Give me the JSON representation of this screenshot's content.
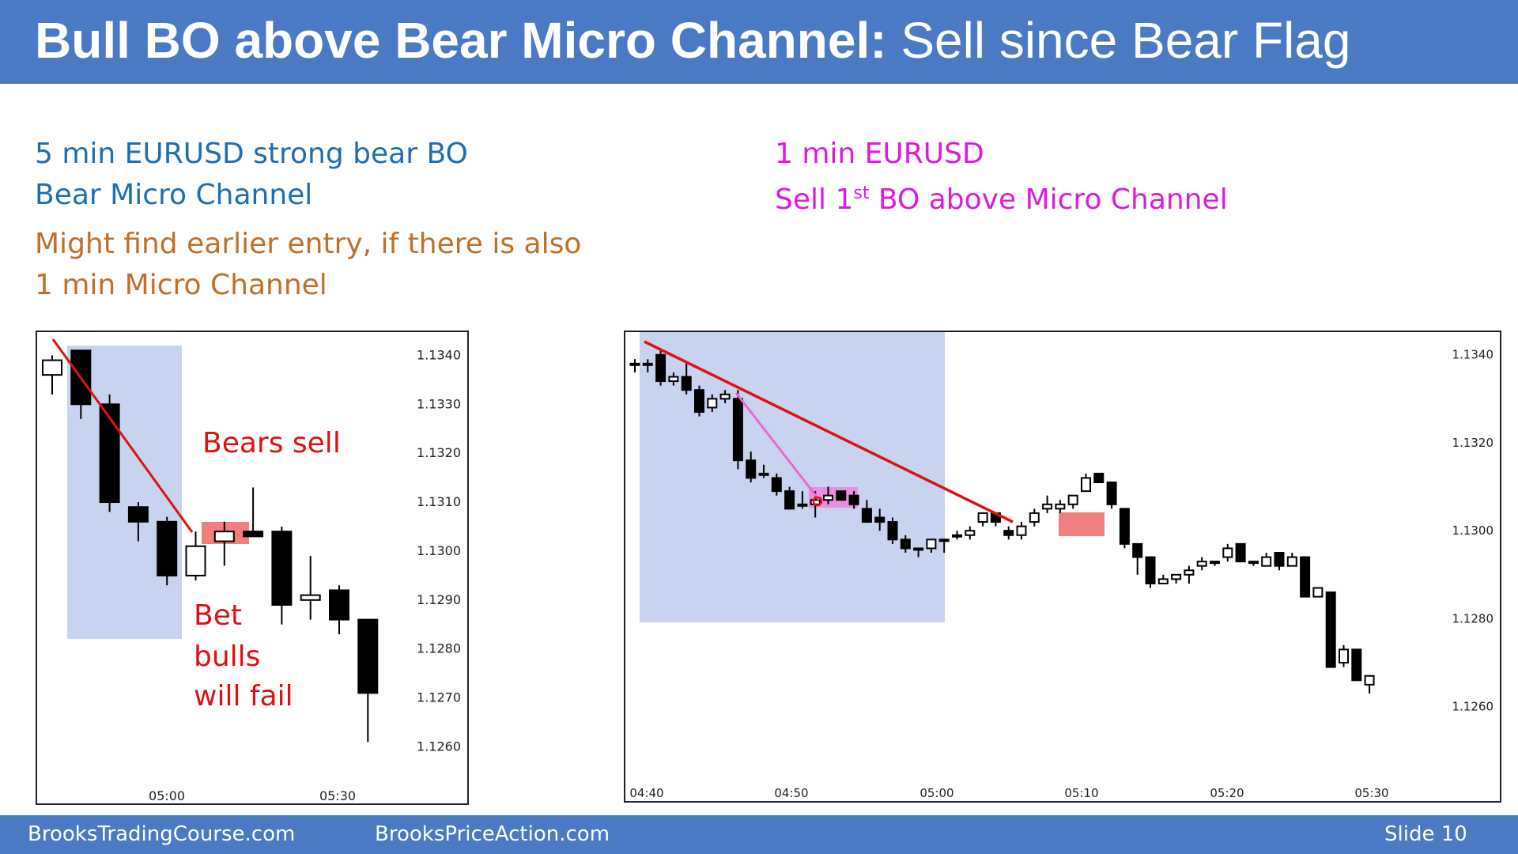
{
  "title": {
    "bold": "Bull BO above Bear Micro Channel:",
    "rest": " Sell since Bear Flag"
  },
  "left_text": {
    "line1": "5 min EURUSD strong bear BO",
    "line2": "Bear Micro Channel",
    "line3": "Might find earlier entry, if there is also",
    "line4": "1 min Micro Channel"
  },
  "right_text": {
    "line1": "1 min EURUSD",
    "line2_pre": "Sell 1",
    "line2_sup": "st",
    "line2_post": " BO above Micro Channel"
  },
  "annotations": {
    "bears_sell": "Bears sell",
    "bet1": "Bet",
    "bet2": "bulls",
    "bet3": "will fail"
  },
  "footer": {
    "site1": "BrooksTradingCourse.com",
    "site2": "BrooksPriceAction.com",
    "slide": "Slide  10"
  },
  "chart_data": [
    {
      "type": "candlestick",
      "y_ticks": [
        "1.1340",
        "1.1330",
        "1.1320",
        "1.1310",
        "1.1300",
        "1.1290",
        "1.1280",
        "1.1270",
        "1.1260"
      ],
      "x_ticks": [
        "05:00",
        "05:30"
      ],
      "ylim": [
        1.1252,
        1.1342
      ],
      "candles": [
        {
          "o": 1.1336,
          "h": 1.134,
          "l": 1.1332,
          "c": 1.1339
        },
        {
          "o": 1.1341,
          "h": 1.1341,
          "l": 1.1327,
          "c": 1.133
        },
        {
          "o": 1.133,
          "h": 1.1332,
          "l": 1.1308,
          "c": 1.131
        },
        {
          "o": 1.1309,
          "h": 1.131,
          "l": 1.1302,
          "c": 1.1306
        },
        {
          "o": 1.1306,
          "h": 1.1307,
          "l": 1.1293,
          "c": 1.1295
        },
        {
          "o": 1.1295,
          "h": 1.1304,
          "l": 1.1294,
          "c": 1.1301
        },
        {
          "o": 1.1302,
          "h": 1.1306,
          "l": 1.1297,
          "c": 1.1304
        },
        {
          "o": 1.1304,
          "h": 1.1313,
          "l": 1.1303,
          "c": 1.1303
        },
        {
          "o": 1.1304,
          "h": 1.1305,
          "l": 1.1285,
          "c": 1.1289
        },
        {
          "o": 1.129,
          "h": 1.1299,
          "l": 1.1286,
          "c": 1.1291
        },
        {
          "o": 1.1292,
          "h": 1.1293,
          "l": 1.1283,
          "c": 1.1286
        },
        {
          "o": 1.1286,
          "h": 1.1286,
          "l": 1.1261,
          "c": 1.1271
        }
      ]
    },
    {
      "type": "candlestick",
      "y_ticks": [
        "1.1340",
        "1.1320",
        "1.1300",
        "1.1280",
        "1.1260"
      ],
      "x_ticks": [
        "04:40",
        "04:50",
        "05:00",
        "05:10",
        "05:20",
        "05:30"
      ],
      "ylim": [
        1.1247,
        1.1343
      ],
      "candles": [
        {
          "o": 1.1338,
          "h": 1.1339,
          "l": 1.1336,
          "c": 1.1338
        },
        {
          "o": 1.1338,
          "h": 1.1339,
          "l": 1.1336,
          "c": 1.1338
        },
        {
          "o": 1.134,
          "h": 1.1341,
          "l": 1.1333,
          "c": 1.1334
        },
        {
          "o": 1.1334,
          "h": 1.1336,
          "l": 1.1333,
          "c": 1.1335
        },
        {
          "o": 1.1335,
          "h": 1.1338,
          "l": 1.1331,
          "c": 1.1332
        },
        {
          "o": 1.1332,
          "h": 1.1333,
          "l": 1.1326,
          "c": 1.1327
        },
        {
          "o": 1.1328,
          "h": 1.1331,
          "l": 1.1327,
          "c": 1.133
        },
        {
          "o": 1.133,
          "h": 1.1332,
          "l": 1.1329,
          "c": 1.1331
        },
        {
          "o": 1.133,
          "h": 1.1332,
          "l": 1.1314,
          "c": 1.1316
        },
        {
          "o": 1.1316,
          "h": 1.1318,
          "l": 1.1311,
          "c": 1.1312
        },
        {
          "o": 1.1313,
          "h": 1.1315,
          "l": 1.1312,
          "c": 1.1313
        },
        {
          "o": 1.1312,
          "h": 1.1313,
          "l": 1.1308,
          "c": 1.1309
        },
        {
          "o": 1.1309,
          "h": 1.131,
          "l": 1.1305,
          "c": 1.1305
        },
        {
          "o": 1.1306,
          "h": 1.1309,
          "l": 1.1305,
          "c": 1.1306
        },
        {
          "o": 1.1306,
          "h": 1.1309,
          "l": 1.1303,
          "c": 1.1307
        },
        {
          "o": 1.1307,
          "h": 1.131,
          "l": 1.1306,
          "c": 1.1308
        },
        {
          "o": 1.1309,
          "h": 1.1309,
          "l": 1.1307,
          "c": 1.1307
        },
        {
          "o": 1.1308,
          "h": 1.1309,
          "l": 1.1305,
          "c": 1.1306
        },
        {
          "o": 1.1305,
          "h": 1.1307,
          "l": 1.1302,
          "c": 1.1302
        },
        {
          "o": 1.1303,
          "h": 1.1305,
          "l": 1.13,
          "c": 1.1302
        },
        {
          "o": 1.1302,
          "h": 1.1303,
          "l": 1.1297,
          "c": 1.1298
        },
        {
          "o": 1.1298,
          "h": 1.1299,
          "l": 1.1295,
          "c": 1.1296
        },
        {
          "o": 1.1296,
          "h": 1.1296,
          "l": 1.1294,
          "c": 1.1296
        },
        {
          "o": 1.1296,
          "h": 1.1298,
          "l": 1.1295,
          "c": 1.1298
        },
        {
          "o": 1.1298,
          "h": 1.1298,
          "l": 1.1295,
          "c": 1.1298
        },
        {
          "o": 1.1299,
          "h": 1.13,
          "l": 1.1298,
          "c": 1.1299
        },
        {
          "o": 1.1299,
          "h": 1.1301,
          "l": 1.1298,
          "c": 1.13
        },
        {
          "o": 1.1302,
          "h": 1.1304,
          "l": 1.1301,
          "c": 1.1304
        },
        {
          "o": 1.1304,
          "h": 1.1304,
          "l": 1.1301,
          "c": 1.1302
        },
        {
          "o": 1.13,
          "h": 1.1301,
          "l": 1.1298,
          "c": 1.1299
        },
        {
          "o": 1.1299,
          "h": 1.1302,
          "l": 1.1298,
          "c": 1.1301
        },
        {
          "o": 1.1302,
          "h": 1.1305,
          "l": 1.1301,
          "c": 1.1304
        },
        {
          "o": 1.1305,
          "h": 1.1308,
          "l": 1.1304,
          "c": 1.1306
        },
        {
          "o": 1.1305,
          "h": 1.1307,
          "l": 1.1304,
          "c": 1.1306
        },
        {
          "o": 1.1306,
          "h": 1.1308,
          "l": 1.1305,
          "c": 1.1308
        },
        {
          "o": 1.1309,
          "h": 1.1313,
          "l": 1.1309,
          "c": 1.1312
        },
        {
          "o": 1.1313,
          "h": 1.1313,
          "l": 1.1311,
          "c": 1.1311
        },
        {
          "o": 1.1311,
          "h": 1.1311,
          "l": 1.1305,
          "c": 1.1306
        },
        {
          "o": 1.1305,
          "h": 1.1305,
          "l": 1.1296,
          "c": 1.1297
        },
        {
          "o": 1.1297,
          "h": 1.1297,
          "l": 1.129,
          "c": 1.1294
        },
        {
          "o": 1.1294,
          "h": 1.1294,
          "l": 1.1287,
          "c": 1.1288
        },
        {
          "o": 1.1288,
          "h": 1.129,
          "l": 1.1288,
          "c": 1.1289
        },
        {
          "o": 1.1289,
          "h": 1.129,
          "l": 1.1288,
          "c": 1.129
        },
        {
          "o": 1.129,
          "h": 1.1292,
          "l": 1.1288,
          "c": 1.1291
        },
        {
          "o": 1.1292,
          "h": 1.1294,
          "l": 1.1291,
          "c": 1.1293
        },
        {
          "o": 1.1293,
          "h": 1.1293,
          "l": 1.1292,
          "c": 1.1293
        },
        {
          "o": 1.1294,
          "h": 1.1297,
          "l": 1.1293,
          "c": 1.1296
        },
        {
          "o": 1.1297,
          "h": 1.1297,
          "l": 1.1293,
          "c": 1.1293
        },
        {
          "o": 1.1293,
          "h": 1.1293,
          "l": 1.1292,
          "c": 1.1293
        },
        {
          "o": 1.1292,
          "h": 1.1295,
          "l": 1.1292,
          "c": 1.1294
        },
        {
          "o": 1.1295,
          "h": 1.1295,
          "l": 1.1291,
          "c": 1.1292
        },
        {
          "o": 1.1292,
          "h": 1.1295,
          "l": 1.1292,
          "c": 1.1294
        },
        {
          "o": 1.1294,
          "h": 1.1294,
          "l": 1.1285,
          "c": 1.1285
        },
        {
          "o": 1.1285,
          "h": 1.1287,
          "l": 1.1285,
          "c": 1.1287
        },
        {
          "o": 1.1286,
          "h": 1.1286,
          "l": 1.1269,
          "c": 1.1269
        },
        {
          "o": 1.127,
          "h": 1.1274,
          "l": 1.1269,
          "c": 1.1273
        },
        {
          "o": 1.1273,
          "h": 1.1273,
          "l": 1.1266,
          "c": 1.1266
        },
        {
          "o": 1.1265,
          "h": 1.1267,
          "l": 1.1263,
          "c": 1.1267
        }
      ]
    }
  ]
}
